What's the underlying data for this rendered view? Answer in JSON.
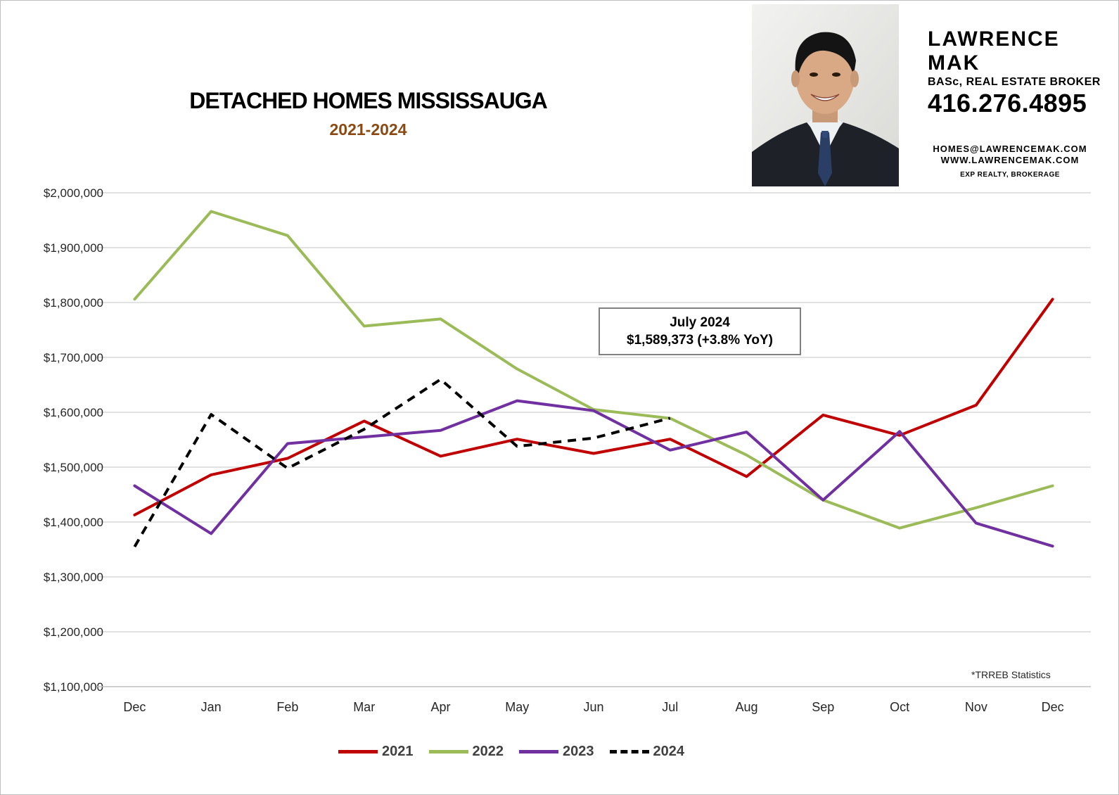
{
  "chart_data": {
    "type": "line",
    "title": "DETACHED HOMES MISSISSAUGA",
    "subtitle": "2021-2024",
    "categories": [
      "Dec",
      "Jan",
      "Feb",
      "Mar",
      "Apr",
      "May",
      "Jun",
      "Jul",
      "Aug",
      "Sep",
      "Oct",
      "Nov",
      "Dec"
    ],
    "ylim": [
      1100000,
      2000000
    ],
    "yticks": [
      1100000,
      1200000,
      1300000,
      1400000,
      1500000,
      1600000,
      1700000,
      1800000,
      1900000,
      2000000
    ],
    "ytick_labels": [
      "$1,100,000",
      "$1,200,000",
      "$1,300,000",
      "$1,400,000",
      "$1,500,000",
      "$1,600,000",
      "$1,700,000",
      "$1,800,000",
      "$1,900,000",
      "$2,000,000"
    ],
    "grid": true,
    "legend_position": "bottom",
    "series": [
      {
        "name": "2021",
        "color": "#c00000",
        "dash": false,
        "values": [
          1413000,
          1486000,
          1516000,
          1584000,
          1520000,
          1551000,
          1525000,
          1551000,
          1483000,
          1595000,
          1558000,
          1613000,
          1806000
        ]
      },
      {
        "name": "2022",
        "color": "#9bbb59",
        "dash": false,
        "values": [
          1806000,
          1966000,
          1922000,
          1757000,
          1770000,
          1679000,
          1605000,
          1589000,
          1522000,
          1440000,
          1389000,
          1426000,
          1466000
        ]
      },
      {
        "name": "2023",
        "color": "#7030a0",
        "dash": false,
        "values": [
          1466000,
          1379000,
          1543000,
          1555000,
          1567000,
          1621000,
          1603000,
          1531000,
          1564000,
          1440000,
          1565000,
          1398000,
          1356000
        ]
      },
      {
        "name": "2024",
        "color": "#000000",
        "dash": true,
        "values": [
          1355000,
          1596000,
          1498000,
          1569000,
          1660000,
          1538000,
          1553000,
          1589373,
          null,
          null,
          null,
          null,
          null
        ]
      }
    ],
    "annotation": {
      "title": "July 2024",
      "value": "$1,589,373 (+3.8% YoY)"
    },
    "source_note": "*TRREB Statistics"
  },
  "agent": {
    "name": "LAWRENCE MAK",
    "credentials": "BASc, REAL ESTATE BROKER",
    "phone": "416.276.4895",
    "email": "HOMES@LAWRENCEMAK.COM",
    "website": "WWW.LAWRENCEMAK.COM",
    "brokerage": "EXP REALTY, BROKERAGE"
  }
}
